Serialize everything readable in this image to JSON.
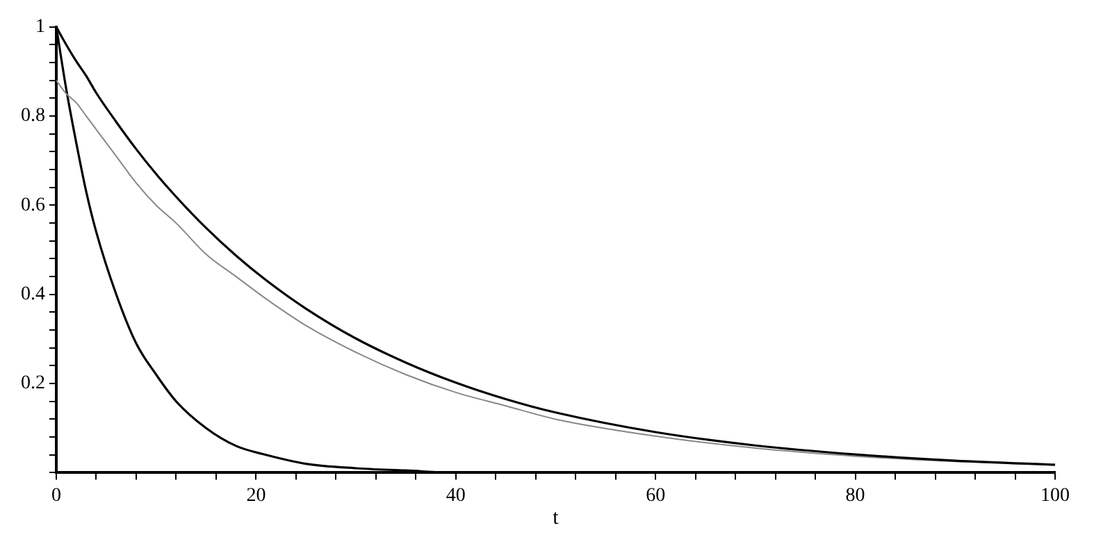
{
  "chart_data": {
    "type": "line",
    "xlabel": "t",
    "x": [
      0,
      1,
      2,
      3,
      4,
      6,
      8,
      10,
      12,
      15,
      18,
      21,
      25,
      30,
      35,
      40,
      45,
      50,
      60,
      70,
      80,
      90,
      100
    ],
    "series": [
      {
        "color": "#000000",
        "values": [
          1,
          0.96,
          0.923,
          0.89,
          0.852,
          0.787,
          0.726,
          0.67,
          0.619,
          0.549,
          0.487,
          0.432,
          0.368,
          0.301,
          0.247,
          0.202,
          0.165,
          0.135,
          0.091,
          0.061,
          0.041,
          0.027,
          0.018
        ]
      },
      {
        "color": "#888888",
        "values": [
          0.88,
          0.85,
          0.83,
          0.8,
          0.77,
          0.71,
          0.65,
          0.6,
          0.56,
          0.49,
          0.44,
          0.39,
          0.33,
          0.27,
          0.22,
          0.18,
          0.15,
          0.12,
          0.082,
          0.055,
          0.037,
          0.025,
          0.017
        ]
      },
      {
        "color": "#000000",
        "values": [
          1,
          0.86,
          0.74,
          0.63,
          0.54,
          0.4,
          0.29,
          0.22,
          0.16,
          0.1,
          0.06,
          0.04,
          0.02,
          0.01,
          0.005,
          0,
          0,
          0,
          0,
          0,
          0,
          0,
          0
        ]
      }
    ],
    "xlim": [
      0,
      100
    ],
    "ylim": [
      0,
      1
    ],
    "xticks": [
      0,
      {
        "value": 4,
        "label": null
      },
      {
        "value": 8,
        "label": null
      },
      {
        "value": 12,
        "label": null
      },
      {
        "value": 16,
        "label": null
      },
      20,
      {
        "value": 24,
        "label": null
      },
      {
        "value": 28,
        "label": null
      },
      {
        "value": 32,
        "label": null
      },
      {
        "value": 36,
        "label": null
      },
      40,
      {
        "value": 44,
        "label": null
      },
      {
        "value": 48,
        "label": null
      },
      {
        "value": 52,
        "label": null
      },
      {
        "value": 56,
        "label": null
      },
      60,
      {
        "value": 64,
        "label": null
      },
      {
        "value": 68,
        "label": null
      },
      {
        "value": 72,
        "label": null
      },
      {
        "value": 76,
        "label": null
      },
      80,
      {
        "value": 84,
        "label": null
      },
      {
        "value": 88,
        "label": null
      },
      {
        "value": 92,
        "label": null
      },
      {
        "value": 96,
        "label": null
      },
      100
    ],
    "yticks": [
      {
        "value": 0,
        "label": null
      },
      {
        "value": 0.04,
        "label": null
      },
      {
        "value": 0.08,
        "label": null
      },
      {
        "value": 0.12,
        "label": null
      },
      {
        "value": 0.16,
        "label": null
      },
      0.2,
      {
        "value": 0.24,
        "label": null
      },
      {
        "value": 0.28,
        "label": null
      },
      {
        "value": 0.32,
        "label": null
      },
      {
        "value": 0.36,
        "label": null
      },
      0.4,
      {
        "value": 0.44,
        "label": null
      },
      {
        "value": 0.48,
        "label": null
      },
      {
        "value": 0.52,
        "label": null
      },
      {
        "value": 0.56,
        "label": null
      },
      0.6,
      {
        "value": 0.64,
        "label": null
      },
      {
        "value": 0.68,
        "label": null
      },
      {
        "value": 0.72,
        "label": null
      },
      {
        "value": 0.76,
        "label": null
      },
      0.8,
      {
        "value": 0.84,
        "label": null
      },
      {
        "value": 0.88,
        "label": null
      },
      {
        "value": 0.92,
        "label": null
      },
      {
        "value": 0.96,
        "label": null
      },
      1
    ],
    "grid": false,
    "legend": false,
    "marker": "none",
    "line_style": "solid"
  }
}
